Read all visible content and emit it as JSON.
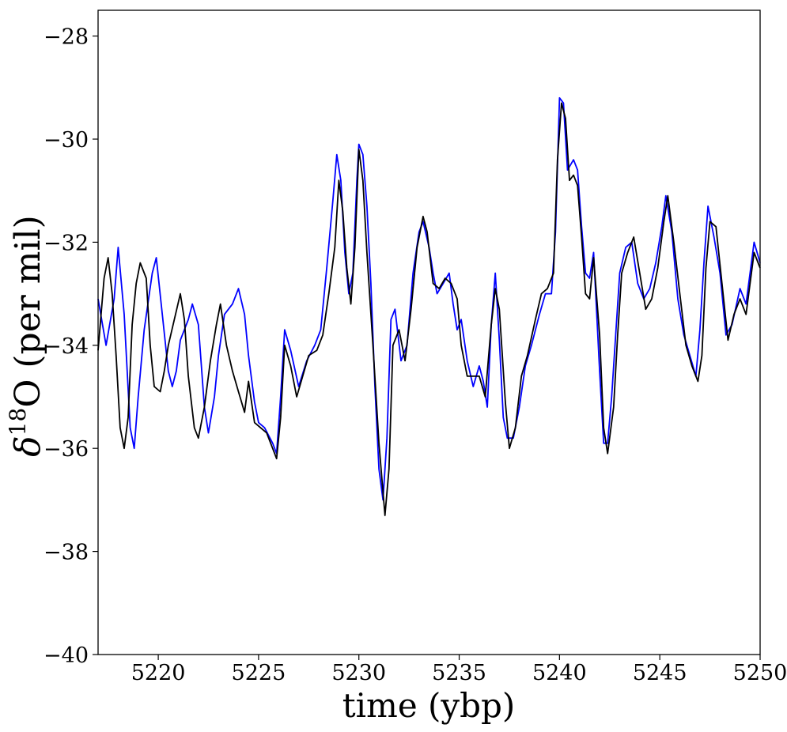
{
  "chart_data": {
    "type": "line",
    "title": "",
    "xlabel": "time (ybp)",
    "ylabel_parts": {
      "delta": "δ",
      "sup": "18",
      "rest": "O (per mil)"
    },
    "xlim": [
      5217,
      5250
    ],
    "ylim": [
      -40,
      -27.5
    ],
    "xticks": [
      5220,
      5225,
      5230,
      5235,
      5240,
      5245,
      5250
    ],
    "yticks": [
      -40,
      -38,
      -36,
      -34,
      -32,
      -30,
      -28
    ],
    "ytick_labels": [
      "−40",
      "−38",
      "−36",
      "−34",
      "−32",
      "−30",
      "−28"
    ],
    "grid": false,
    "legend": "none",
    "series": [
      {
        "color": "#0000ff",
        "points": [
          [
            5217.0,
            -33.1
          ],
          [
            5217.4,
            -34.0
          ],
          [
            5217.8,
            -33.1
          ],
          [
            5218.0,
            -32.1
          ],
          [
            5218.3,
            -33.4
          ],
          [
            5218.6,
            -35.6
          ],
          [
            5218.8,
            -36.0
          ],
          [
            5219.0,
            -35.0
          ],
          [
            5219.3,
            -33.7
          ],
          [
            5219.7,
            -32.6
          ],
          [
            5219.9,
            -32.3
          ],
          [
            5220.2,
            -33.4
          ],
          [
            5220.5,
            -34.5
          ],
          [
            5220.7,
            -34.8
          ],
          [
            5220.9,
            -34.5
          ],
          [
            5221.1,
            -33.9
          ],
          [
            5221.5,
            -33.5
          ],
          [
            5221.7,
            -33.2
          ],
          [
            5222.0,
            -33.6
          ],
          [
            5222.3,
            -35.2
          ],
          [
            5222.5,
            -35.7
          ],
          [
            5222.8,
            -35.0
          ],
          [
            5223.0,
            -34.2
          ],
          [
            5223.3,
            -33.4
          ],
          [
            5223.7,
            -33.2
          ],
          [
            5224.0,
            -32.9
          ],
          [
            5224.3,
            -33.4
          ],
          [
            5224.5,
            -34.2
          ],
          [
            5224.8,
            -35.1
          ],
          [
            5225.0,
            -35.5
          ],
          [
            5225.3,
            -35.6
          ],
          [
            5225.7,
            -35.9
          ],
          [
            5225.9,
            -36.1
          ],
          [
            5226.1,
            -35.0
          ],
          [
            5226.3,
            -33.7
          ],
          [
            5226.6,
            -34.1
          ],
          [
            5227.0,
            -34.8
          ],
          [
            5227.4,
            -34.3
          ],
          [
            5227.8,
            -34.0
          ],
          [
            5228.1,
            -33.7
          ],
          [
            5228.4,
            -32.5
          ],
          [
            5228.7,
            -31.2
          ],
          [
            5228.9,
            -30.3
          ],
          [
            5229.1,
            -30.8
          ],
          [
            5229.3,
            -32.2
          ],
          [
            5229.5,
            -33.0
          ],
          [
            5229.7,
            -32.6
          ],
          [
            5229.9,
            -30.8
          ],
          [
            5230.0,
            -30.1
          ],
          [
            5230.2,
            -30.3
          ],
          [
            5230.4,
            -31.3
          ],
          [
            5230.6,
            -32.8
          ],
          [
            5230.8,
            -34.8
          ],
          [
            5231.0,
            -36.4
          ],
          [
            5231.2,
            -37.0
          ],
          [
            5231.4,
            -35.8
          ],
          [
            5231.6,
            -33.5
          ],
          [
            5231.8,
            -33.3
          ],
          [
            5232.1,
            -34.3
          ],
          [
            5232.4,
            -34.0
          ],
          [
            5232.7,
            -32.6
          ],
          [
            5233.0,
            -31.8
          ],
          [
            5233.2,
            -31.6
          ],
          [
            5233.5,
            -32.1
          ],
          [
            5233.7,
            -32.6
          ],
          [
            5233.9,
            -33.0
          ],
          [
            5234.2,
            -32.8
          ],
          [
            5234.5,
            -32.6
          ],
          [
            5234.7,
            -33.2
          ],
          [
            5234.9,
            -33.7
          ],
          [
            5235.1,
            -33.5
          ],
          [
            5235.4,
            -34.3
          ],
          [
            5235.7,
            -34.8
          ],
          [
            5236.0,
            -34.4
          ],
          [
            5236.2,
            -34.7
          ],
          [
            5236.4,
            -35.2
          ],
          [
            5236.6,
            -33.6
          ],
          [
            5236.8,
            -32.6
          ],
          [
            5237.0,
            -33.9
          ],
          [
            5237.2,
            -35.4
          ],
          [
            5237.4,
            -35.8
          ],
          [
            5237.7,
            -35.8
          ],
          [
            5238.0,
            -35.2
          ],
          [
            5238.3,
            -34.4
          ],
          [
            5238.6,
            -34.0
          ],
          [
            5239.0,
            -33.4
          ],
          [
            5239.3,
            -33.0
          ],
          [
            5239.6,
            -33.0
          ],
          [
            5239.8,
            -31.8
          ],
          [
            5240.0,
            -29.2
          ],
          [
            5240.2,
            -29.3
          ],
          [
            5240.4,
            -30.6
          ],
          [
            5240.7,
            -30.4
          ],
          [
            5240.9,
            -30.6
          ],
          [
            5241.1,
            -31.7
          ],
          [
            5241.3,
            -32.6
          ],
          [
            5241.5,
            -32.7
          ],
          [
            5241.7,
            -32.2
          ],
          [
            5242.0,
            -34.5
          ],
          [
            5242.2,
            -35.9
          ],
          [
            5242.4,
            -35.9
          ],
          [
            5242.6,
            -35.0
          ],
          [
            5242.8,
            -33.8
          ],
          [
            5243.0,
            -32.6
          ],
          [
            5243.3,
            -32.1
          ],
          [
            5243.6,
            -32.0
          ],
          [
            5243.9,
            -32.8
          ],
          [
            5244.2,
            -33.1
          ],
          [
            5244.5,
            -32.9
          ],
          [
            5244.8,
            -32.4
          ],
          [
            5245.1,
            -31.7
          ],
          [
            5245.3,
            -31.1
          ],
          [
            5245.6,
            -31.8
          ],
          [
            5245.9,
            -33.1
          ],
          [
            5246.2,
            -33.8
          ],
          [
            5246.5,
            -34.2
          ],
          [
            5246.8,
            -34.6
          ],
          [
            5247.0,
            -33.7
          ],
          [
            5247.2,
            -32.4
          ],
          [
            5247.4,
            -31.3
          ],
          [
            5247.7,
            -31.9
          ],
          [
            5248.0,
            -32.6
          ],
          [
            5248.3,
            -33.8
          ],
          [
            5248.6,
            -33.6
          ],
          [
            5249.0,
            -32.9
          ],
          [
            5249.3,
            -33.2
          ],
          [
            5249.5,
            -32.6
          ],
          [
            5249.7,
            -32.0
          ],
          [
            5250.0,
            -32.4
          ]
        ]
      },
      {
        "color": "#000000",
        "points": [
          [
            5217.0,
            -34.1
          ],
          [
            5217.3,
            -32.7
          ],
          [
            5217.5,
            -32.3
          ],
          [
            5217.7,
            -33.0
          ],
          [
            5217.9,
            -34.2
          ],
          [
            5218.1,
            -35.6
          ],
          [
            5218.3,
            -36.0
          ],
          [
            5218.5,
            -35.4
          ],
          [
            5218.7,
            -33.6
          ],
          [
            5218.9,
            -32.8
          ],
          [
            5219.1,
            -32.4
          ],
          [
            5219.4,
            -32.7
          ],
          [
            5219.6,
            -34.0
          ],
          [
            5219.8,
            -34.8
          ],
          [
            5220.1,
            -34.9
          ],
          [
            5220.3,
            -34.5
          ],
          [
            5220.5,
            -34.0
          ],
          [
            5220.8,
            -33.5
          ],
          [
            5221.1,
            -33.0
          ],
          [
            5221.3,
            -33.5
          ],
          [
            5221.5,
            -34.6
          ],
          [
            5221.8,
            -35.6
          ],
          [
            5222.0,
            -35.8
          ],
          [
            5222.3,
            -35.2
          ],
          [
            5222.6,
            -34.3
          ],
          [
            5222.9,
            -33.6
          ],
          [
            5223.1,
            -33.2
          ],
          [
            5223.4,
            -34.0
          ],
          [
            5223.7,
            -34.5
          ],
          [
            5224.0,
            -34.9
          ],
          [
            5224.3,
            -35.3
          ],
          [
            5224.5,
            -34.7
          ],
          [
            5224.8,
            -35.5
          ],
          [
            5225.1,
            -35.6
          ],
          [
            5225.4,
            -35.7
          ],
          [
            5225.7,
            -36.0
          ],
          [
            5225.9,
            -36.2
          ],
          [
            5226.1,
            -35.4
          ],
          [
            5226.3,
            -34.0
          ],
          [
            5226.6,
            -34.4
          ],
          [
            5226.9,
            -35.0
          ],
          [
            5227.2,
            -34.6
          ],
          [
            5227.5,
            -34.2
          ],
          [
            5227.9,
            -34.1
          ],
          [
            5228.2,
            -33.8
          ],
          [
            5228.5,
            -33.0
          ],
          [
            5228.8,
            -32.1
          ],
          [
            5229.0,
            -30.8
          ],
          [
            5229.2,
            -31.4
          ],
          [
            5229.4,
            -32.5
          ],
          [
            5229.6,
            -33.2
          ],
          [
            5229.8,
            -32.1
          ],
          [
            5230.0,
            -30.2
          ],
          [
            5230.2,
            -30.8
          ],
          [
            5230.4,
            -32.2
          ],
          [
            5230.7,
            -34.0
          ],
          [
            5231.0,
            -35.9
          ],
          [
            5231.3,
            -37.3
          ],
          [
            5231.5,
            -36.4
          ],
          [
            5231.7,
            -34.0
          ],
          [
            5232.0,
            -33.7
          ],
          [
            5232.3,
            -34.3
          ],
          [
            5232.6,
            -33.3
          ],
          [
            5232.9,
            -32.1
          ],
          [
            5233.2,
            -31.5
          ],
          [
            5233.4,
            -31.8
          ],
          [
            5233.7,
            -32.8
          ],
          [
            5234.0,
            -32.9
          ],
          [
            5234.3,
            -32.7
          ],
          [
            5234.6,
            -32.8
          ],
          [
            5234.9,
            -33.1
          ],
          [
            5235.1,
            -34.0
          ],
          [
            5235.4,
            -34.6
          ],
          [
            5235.7,
            -34.6
          ],
          [
            5236.0,
            -34.6
          ],
          [
            5236.3,
            -35.0
          ],
          [
            5236.6,
            -33.6
          ],
          [
            5236.8,
            -32.9
          ],
          [
            5237.0,
            -33.3
          ],
          [
            5237.3,
            -35.1
          ],
          [
            5237.5,
            -36.0
          ],
          [
            5237.8,
            -35.6
          ],
          [
            5238.1,
            -34.6
          ],
          [
            5238.4,
            -34.2
          ],
          [
            5238.8,
            -33.5
          ],
          [
            5239.1,
            -33.0
          ],
          [
            5239.4,
            -32.9
          ],
          [
            5239.7,
            -32.6
          ],
          [
            5239.9,
            -30.4
          ],
          [
            5240.1,
            -29.3
          ],
          [
            5240.3,
            -29.6
          ],
          [
            5240.5,
            -30.8
          ],
          [
            5240.7,
            -30.7
          ],
          [
            5240.9,
            -30.9
          ],
          [
            5241.1,
            -31.9
          ],
          [
            5241.3,
            -33.0
          ],
          [
            5241.5,
            -33.1
          ],
          [
            5241.7,
            -32.3
          ],
          [
            5242.0,
            -33.8
          ],
          [
            5242.2,
            -35.6
          ],
          [
            5242.4,
            -36.1
          ],
          [
            5242.7,
            -35.2
          ],
          [
            5242.9,
            -33.8
          ],
          [
            5243.1,
            -32.6
          ],
          [
            5243.4,
            -32.2
          ],
          [
            5243.7,
            -31.9
          ],
          [
            5244.0,
            -32.6
          ],
          [
            5244.3,
            -33.3
          ],
          [
            5244.6,
            -33.1
          ],
          [
            5244.9,
            -32.5
          ],
          [
            5245.2,
            -31.6
          ],
          [
            5245.4,
            -31.1
          ],
          [
            5245.7,
            -32.0
          ],
          [
            5246.0,
            -33.0
          ],
          [
            5246.3,
            -34.0
          ],
          [
            5246.6,
            -34.4
          ],
          [
            5246.9,
            -34.7
          ],
          [
            5247.1,
            -34.2
          ],
          [
            5247.3,
            -32.5
          ],
          [
            5247.5,
            -31.6
          ],
          [
            5247.8,
            -31.7
          ],
          [
            5248.1,
            -32.8
          ],
          [
            5248.4,
            -33.9
          ],
          [
            5248.7,
            -33.4
          ],
          [
            5249.0,
            -33.1
          ],
          [
            5249.3,
            -33.4
          ],
          [
            5249.5,
            -32.8
          ],
          [
            5249.7,
            -32.2
          ],
          [
            5250.0,
            -32.5
          ]
        ]
      }
    ]
  }
}
